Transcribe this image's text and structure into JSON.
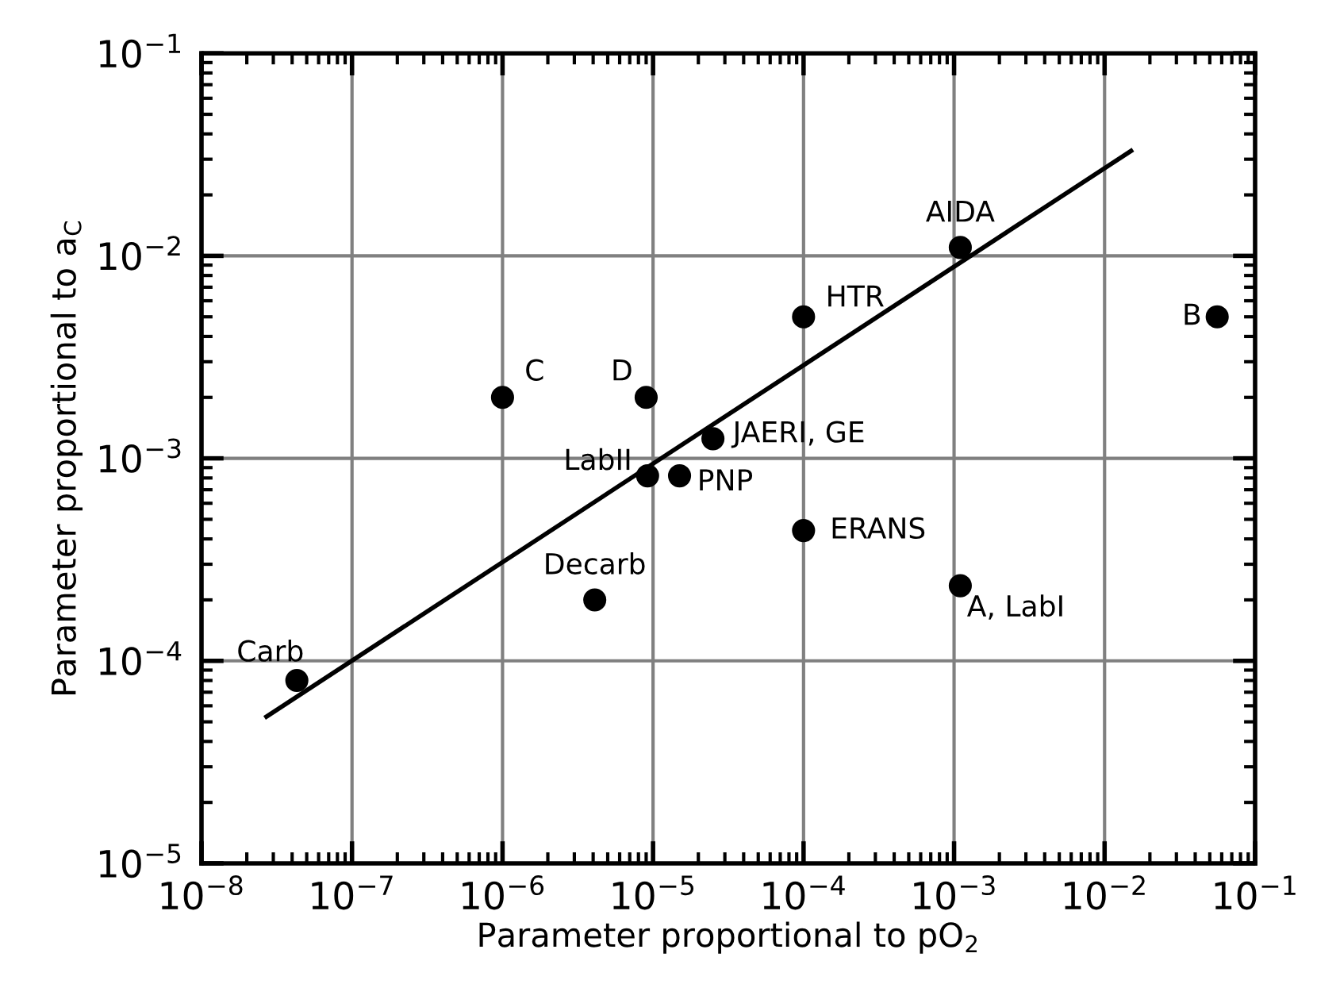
{
  "chart_data": {
    "type": "scatter",
    "xlabel": "Parameter proportional to pO$_{2}$",
    "ylabel": "Parameter proportional to a$_{C}$",
    "log": "xy",
    "grid": true,
    "xlim": [
      1e-08,
      0.1
    ],
    "ylim": [
      1e-05,
      0.1
    ],
    "xticks": [
      {
        "value": 1e-08,
        "label": "10$^{−8}$"
      },
      {
        "value": 1e-07,
        "label": "10$^{−7}$"
      },
      {
        "value": 1e-06,
        "label": "10$^{−6}$"
      },
      {
        "value": 1e-05,
        "label": "10$^{−5}$"
      },
      {
        "value": 0.0001,
        "label": "10$^{−4}$"
      },
      {
        "value": 0.001,
        "label": "10$^{−3}$"
      },
      {
        "value": 0.01,
        "label": "10$^{−2}$"
      },
      {
        "value": 0.1,
        "label": "10$^{−1}$"
      }
    ],
    "yticks": [
      {
        "value": 1e-05,
        "label": "10$^{−5}$"
      },
      {
        "value": 0.0001,
        "label": "10$^{−4}$"
      },
      {
        "value": 0.001,
        "label": "10$^{−3}$"
      },
      {
        "value": 0.01,
        "label": "10$^{−2}$"
      },
      {
        "value": 0.1,
        "label": "10$^{−1}$"
      }
    ],
    "series": [
      {
        "color": "#000000",
        "marker": "circle",
        "x": [
          4.3e-08,
          4.1e-06,
          9.2e-06,
          1.5e-05,
          2.5e-05,
          1e-06,
          9e-06,
          0.0001,
          0.0011,
          0.056,
          0.0001,
          0.0011
        ],
        "values": [
          8e-05,
          0.0002,
          0.00082,
          0.00082,
          0.00125,
          0.002,
          0.002,
          0.005,
          0.011,
          0.005,
          0.00044,
          0.000235
        ]
      },
      {
        "type": "line",
        "color": "#000000",
        "marker": "none",
        "line_style": "solid",
        "x": [
          2.7e-08,
          0.015
        ],
        "values": [
          5.3e-05,
          0.033
        ]
      }
    ],
    "annotations": [
      {
        "text": "Carb",
        "x": 4.3e-08,
        "y": 8e-05
      },
      {
        "text": "Decarb",
        "x": 4.1e-06,
        "y": 0.0002
      },
      {
        "text": "LabII",
        "x": 9.2e-06,
        "y": 0.00082
      },
      {
        "text": "PNP",
        "x": 1.5e-05,
        "y": 0.00082
      },
      {
        "text": "JAERI, GE",
        "x": 2.5e-05,
        "y": 0.00125
      },
      {
        "text": "C",
        "x": 1e-06,
        "y": 0.002
      },
      {
        "text": "D",
        "x": 9e-06,
        "y": 0.002
      },
      {
        "text": "HTR",
        "x": 0.0001,
        "y": 0.005
      },
      {
        "text": "AIDA",
        "x": 0.0011,
        "y": 0.011
      },
      {
        "text": "B",
        "x": 0.056,
        "y": 0.005
      },
      {
        "text": "ERANS",
        "x": 0.0001,
        "y": 0.00044
      },
      {
        "text": "A, LabI",
        "x": 0.0011,
        "y": 0.000235
      }
    ]
  }
}
